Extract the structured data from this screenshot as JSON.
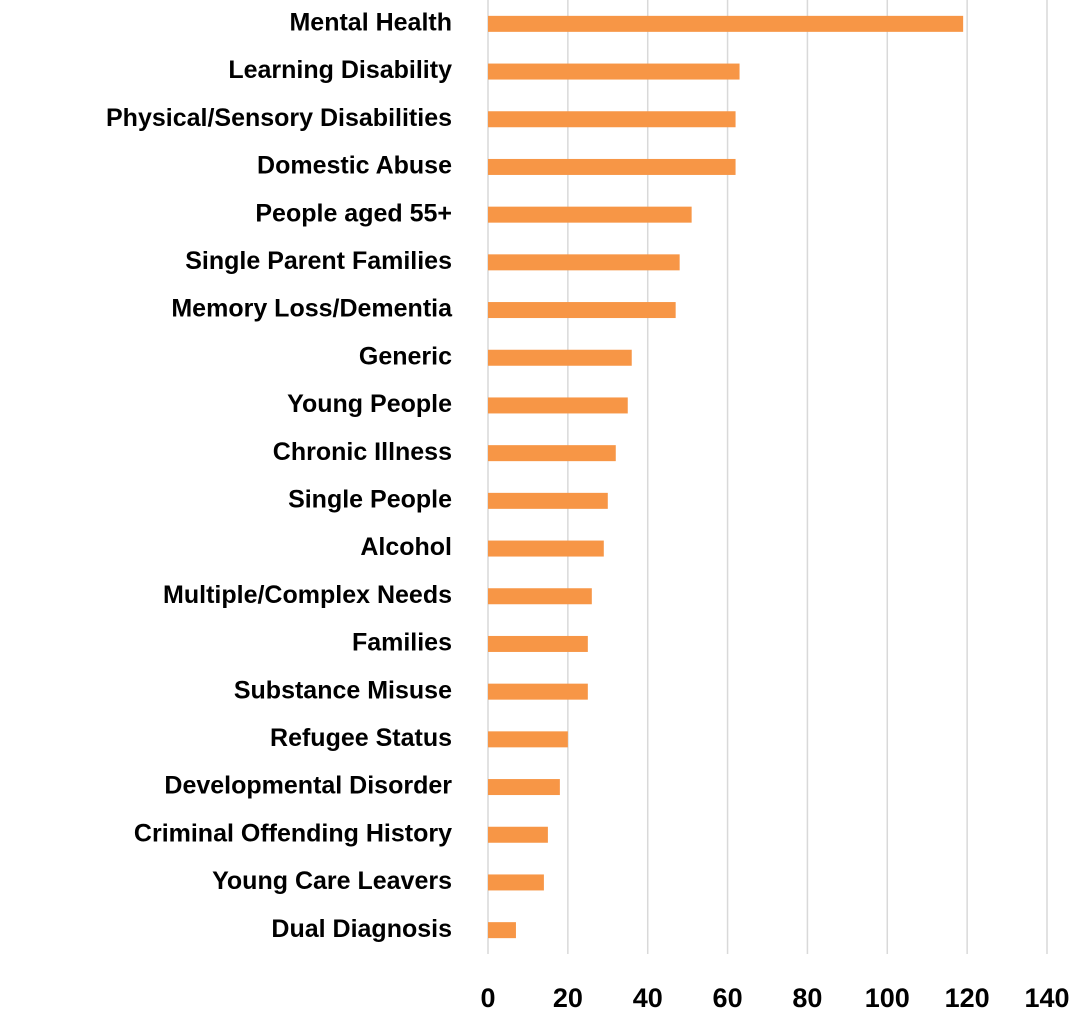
{
  "chart_data": {
    "type": "barh",
    "categories": [
      "Mental Health",
      "Learning Disability",
      "Physical/Sensory Disabilities",
      "Domestic Abuse",
      "People aged 55+",
      "Single Parent Families",
      "Memory Loss/Dementia",
      "Generic",
      "Young People",
      "Chronic Illness",
      "Single People",
      "Alcohol",
      "Multiple/Complex Needs",
      "Families",
      "Substance Misuse",
      "Refugee Status",
      "Developmental Disorder",
      "Criminal Offending History",
      "Young Care Leavers",
      "Dual Diagnosis"
    ],
    "values": [
      119,
      63,
      62,
      62,
      51,
      48,
      47,
      36,
      35,
      32,
      30,
      29,
      26,
      25,
      25,
      20,
      18,
      15,
      14,
      7
    ],
    "color": "#f79646",
    "xlim": [
      0,
      140
    ],
    "xticks": [
      0,
      20,
      40,
      60,
      80,
      100,
      120,
      140
    ],
    "grid": true
  }
}
